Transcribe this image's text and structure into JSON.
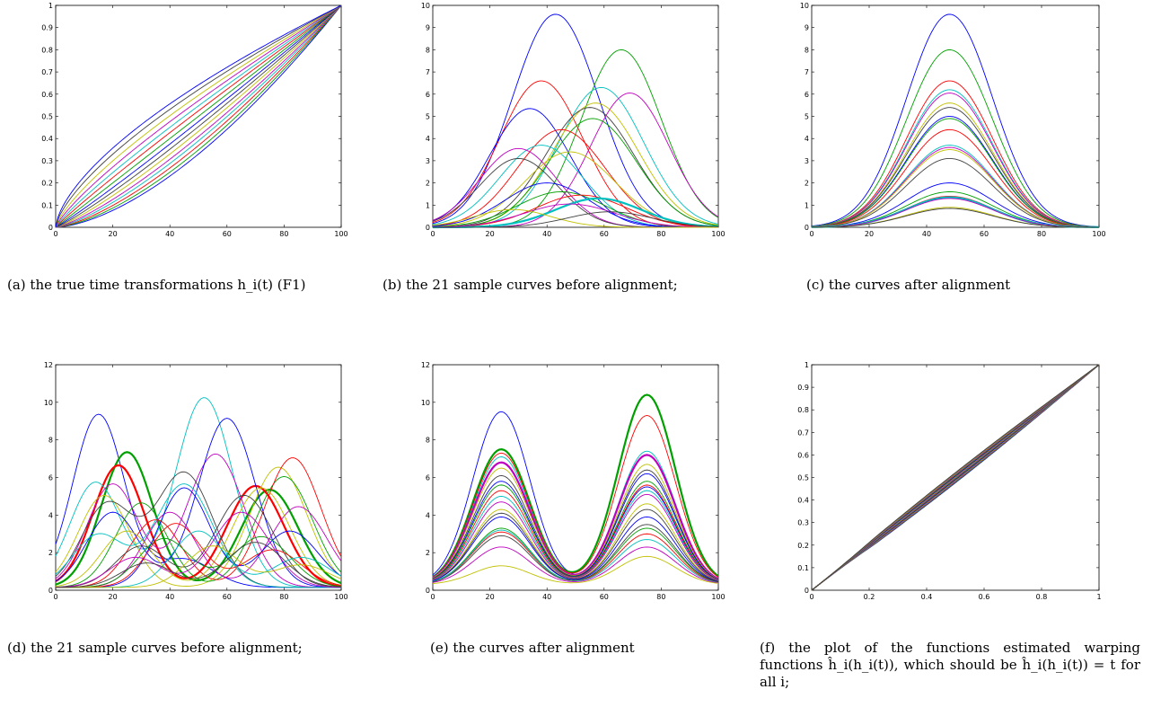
{
  "captions": {
    "a": "(a) the true time transformations h_i(t) (F1)",
    "b": "(b) the 21 sample curves before alignment;",
    "c": "(c) the curves after alignment",
    "d": "(d) the 21 sample curves before alignment;",
    "e": "(e) the curves after alignment",
    "f": "(f) the plot of the functions estimated warping functions ĥ_i(h_i(t)), which should be ĥ_i(h_i(t)) = t for all i;"
  },
  "colors": [
    "#0000ff",
    "#00a000",
    "#ff0000",
    "#00c0c0",
    "#c000c0",
    "#c0c000",
    "#404040"
  ],
  "chart_data": [
    {
      "id": "a",
      "type": "line",
      "xlim": [
        0,
        100
      ],
      "ylim": [
        0,
        1
      ],
      "xticks": [
        "0",
        "20",
        "40",
        "60",
        "80",
        "100"
      ],
      "yticks": [
        "0",
        "0.1",
        "0.2",
        "0.3",
        "0.4",
        "0.5",
        "0.6",
        "0.7",
        "0.8",
        "0.9",
        "1"
      ],
      "series_count": 15,
      "exponents": [
        1.6,
        1.52,
        1.44,
        1.36,
        1.29,
        1.21,
        1.14,
        1.07,
        1.0,
        0.93,
        0.87,
        0.81,
        0.75,
        0.69,
        0.64
      ]
    },
    {
      "id": "b",
      "type": "line",
      "xlim": [
        0,
        100
      ],
      "ylim": [
        0,
        10
      ],
      "xticks": [
        "0",
        "20",
        "40",
        "60",
        "80",
        "100"
      ],
      "yticks": [
        "0",
        "1",
        "2",
        "3",
        "4",
        "5",
        "6",
        "7",
        "8",
        "9",
        "10"
      ],
      "series": [
        {
          "peak_x": 43,
          "peak_y": 9.6
        },
        {
          "peak_x": 66,
          "peak_y": 8.0
        },
        {
          "peak_x": 38,
          "peak_y": 6.6
        },
        {
          "peak_x": 59,
          "peak_y": 6.3
        },
        {
          "peak_x": 69,
          "peak_y": 6.05
        },
        {
          "peak_x": 57,
          "peak_y": 5.6
        },
        {
          "peak_x": 55,
          "peak_y": 5.4
        },
        {
          "peak_x": 34,
          "peak_y": 5.35
        },
        {
          "peak_x": 56,
          "peak_y": 4.9
        },
        {
          "peak_x": 45,
          "peak_y": 4.4
        },
        {
          "peak_x": 38,
          "peak_y": 3.7
        },
        {
          "peak_x": 30,
          "peak_y": 3.55
        },
        {
          "peak_x": 48,
          "peak_y": 3.4
        },
        {
          "peak_x": 30,
          "peak_y": 3.1
        },
        {
          "peak_x": 40,
          "peak_y": 2.0
        },
        {
          "peak_x": 45,
          "peak_y": 1.6
        },
        {
          "peak_x": 52,
          "peak_y": 1.45
        },
        {
          "peak_x": 58,
          "peak_y": 1.3
        },
        {
          "peak_x": 48,
          "peak_y": 1.05
        },
        {
          "peak_x": 28,
          "peak_y": 0.8
        },
        {
          "peak_x": 62,
          "peak_y": 0.7
        }
      ]
    },
    {
      "id": "c",
      "type": "line",
      "xlim": [
        0,
        100
      ],
      "ylim": [
        0,
        10
      ],
      "xticks": [
        "0",
        "20",
        "40",
        "60",
        "80",
        "100"
      ],
      "yticks": [
        "0",
        "1",
        "2",
        "3",
        "4",
        "5",
        "6",
        "7",
        "8",
        "9",
        "10"
      ],
      "peak_x": 48,
      "peaks": [
        9.6,
        8.0,
        6.6,
        6.2,
        6.05,
        5.6,
        5.4,
        5.0,
        4.9,
        4.4,
        3.7,
        3.6,
        3.5,
        3.1,
        2.0,
        1.6,
        1.4,
        1.35,
        1.3,
        0.9,
        0.85
      ]
    },
    {
      "id": "d",
      "type": "line",
      "xlim": [
        0,
        100
      ],
      "ylim": [
        0,
        12
      ],
      "xticks": [
        "0",
        "20",
        "40",
        "60",
        "80",
        "100"
      ],
      "yticks": [
        "0",
        "2",
        "4",
        "6",
        "8",
        "10",
        "12"
      ],
      "series": [
        {
          "p1x": 15,
          "p1y": 9.2,
          "p2x": 45,
          "p2y": 1.5
        },
        {
          "p1x": 25,
          "p1y": 7.2,
          "p2x": 75,
          "p2y": 5.2
        },
        {
          "p1x": 22,
          "p1y": 6.5,
          "p2x": 70,
          "p2y": 5.4
        },
        {
          "p1x": 14,
          "p1y": 5.6,
          "p2x": 52,
          "p2y": 10.1
        },
        {
          "p1x": 20,
          "p1y": 5.5,
          "p2x": 56,
          "p2y": 7.1
        },
        {
          "p1x": 17,
          "p1y": 4.9,
          "p2x": 78,
          "p2y": 6.4
        },
        {
          "p1x": 18,
          "p1y": 4.4,
          "p2x": 45,
          "p2y": 6.1
        },
        {
          "p1x": 20,
          "p1y": 4.0,
          "p2x": 60,
          "p2y": 9.0
        },
        {
          "p1x": 30,
          "p1y": 4.5,
          "p2x": 80,
          "p2y": 5.9
        },
        {
          "p1x": 35,
          "p1y": 3.6,
          "p2x": 83,
          "p2y": 6.9
        },
        {
          "p1x": 15,
          "p1y": 2.8,
          "p2x": 45,
          "p2y": 5.5
        },
        {
          "p1x": 40,
          "p1y": 4.0,
          "p2x": 85,
          "p2y": 4.3
        },
        {
          "p1x": 25,
          "p1y": 3.0,
          "p2x": 72,
          "p2y": 5.3
        },
        {
          "p1x": 30,
          "p1y": 2.2,
          "p2x": 66,
          "p2y": 4.9
        },
        {
          "p1x": 45,
          "p1y": 5.3,
          "p2x": 82,
          "p2y": 3.0
        },
        {
          "p1x": 38,
          "p1y": 2.6,
          "p2x": 72,
          "p2y": 2.7
        },
        {
          "p1x": 42,
          "p1y": 3.4,
          "p2x": 76,
          "p2y": 2.0
        },
        {
          "p1x": 50,
          "p1y": 3.0,
          "p2x": 86,
          "p2y": 1.6
        },
        {
          "p1x": 28,
          "p1y": 1.6,
          "p2x": 65,
          "p2y": 4.0
        },
        {
          "p1x": 55,
          "p1y": 2.2,
          "p2x": 86,
          "p2y": 1.2
        },
        {
          "p1x": 32,
          "p1y": 1.3,
          "p2x": 70,
          "p2y": 2.4
        }
      ]
    },
    {
      "id": "e",
      "type": "line",
      "xlim": [
        0,
        100
      ],
      "ylim": [
        0,
        12
      ],
      "xticks": [
        "0",
        "20",
        "40",
        "60",
        "80",
        "100"
      ],
      "yticks": [
        "0",
        "2",
        "4",
        "6",
        "8",
        "10",
        "12"
      ],
      "peak1_x": 24,
      "peak2_x": 75,
      "pairs": [
        [
          9.2,
          5.2
        ],
        [
          7.2,
          10.1
        ],
        [
          7.0,
          9.0
        ],
        [
          6.8,
          7.1
        ],
        [
          6.5,
          6.9
        ],
        [
          6.2,
          6.4
        ],
        [
          5.8,
          6.1
        ],
        [
          5.5,
          5.9
        ],
        [
          5.3,
          5.5
        ],
        [
          5.0,
          5.3
        ],
        [
          4.7,
          5.0
        ],
        [
          4.4,
          4.8
        ],
        [
          4.0,
          4.3
        ],
        [
          3.8,
          4.0
        ],
        [
          3.6,
          3.6
        ],
        [
          3.0,
          3.0
        ],
        [
          2.8,
          2.7
        ],
        [
          2.9,
          2.4
        ],
        [
          2.0,
          2.0
        ],
        [
          1.0,
          1.5
        ],
        [
          2.6,
          3.2
        ]
      ]
    },
    {
      "id": "f",
      "type": "line",
      "xlim": [
        0,
        1
      ],
      "ylim": [
        0,
        1
      ],
      "xticks": [
        "0",
        "0.2",
        "0.4",
        "0.6",
        "0.8",
        "1"
      ],
      "yticks": [
        "0",
        "0.1",
        "0.2",
        "0.3",
        "0.4",
        "0.5",
        "0.6",
        "0.7",
        "0.8",
        "0.9",
        "1"
      ],
      "series_count": 21
    }
  ]
}
